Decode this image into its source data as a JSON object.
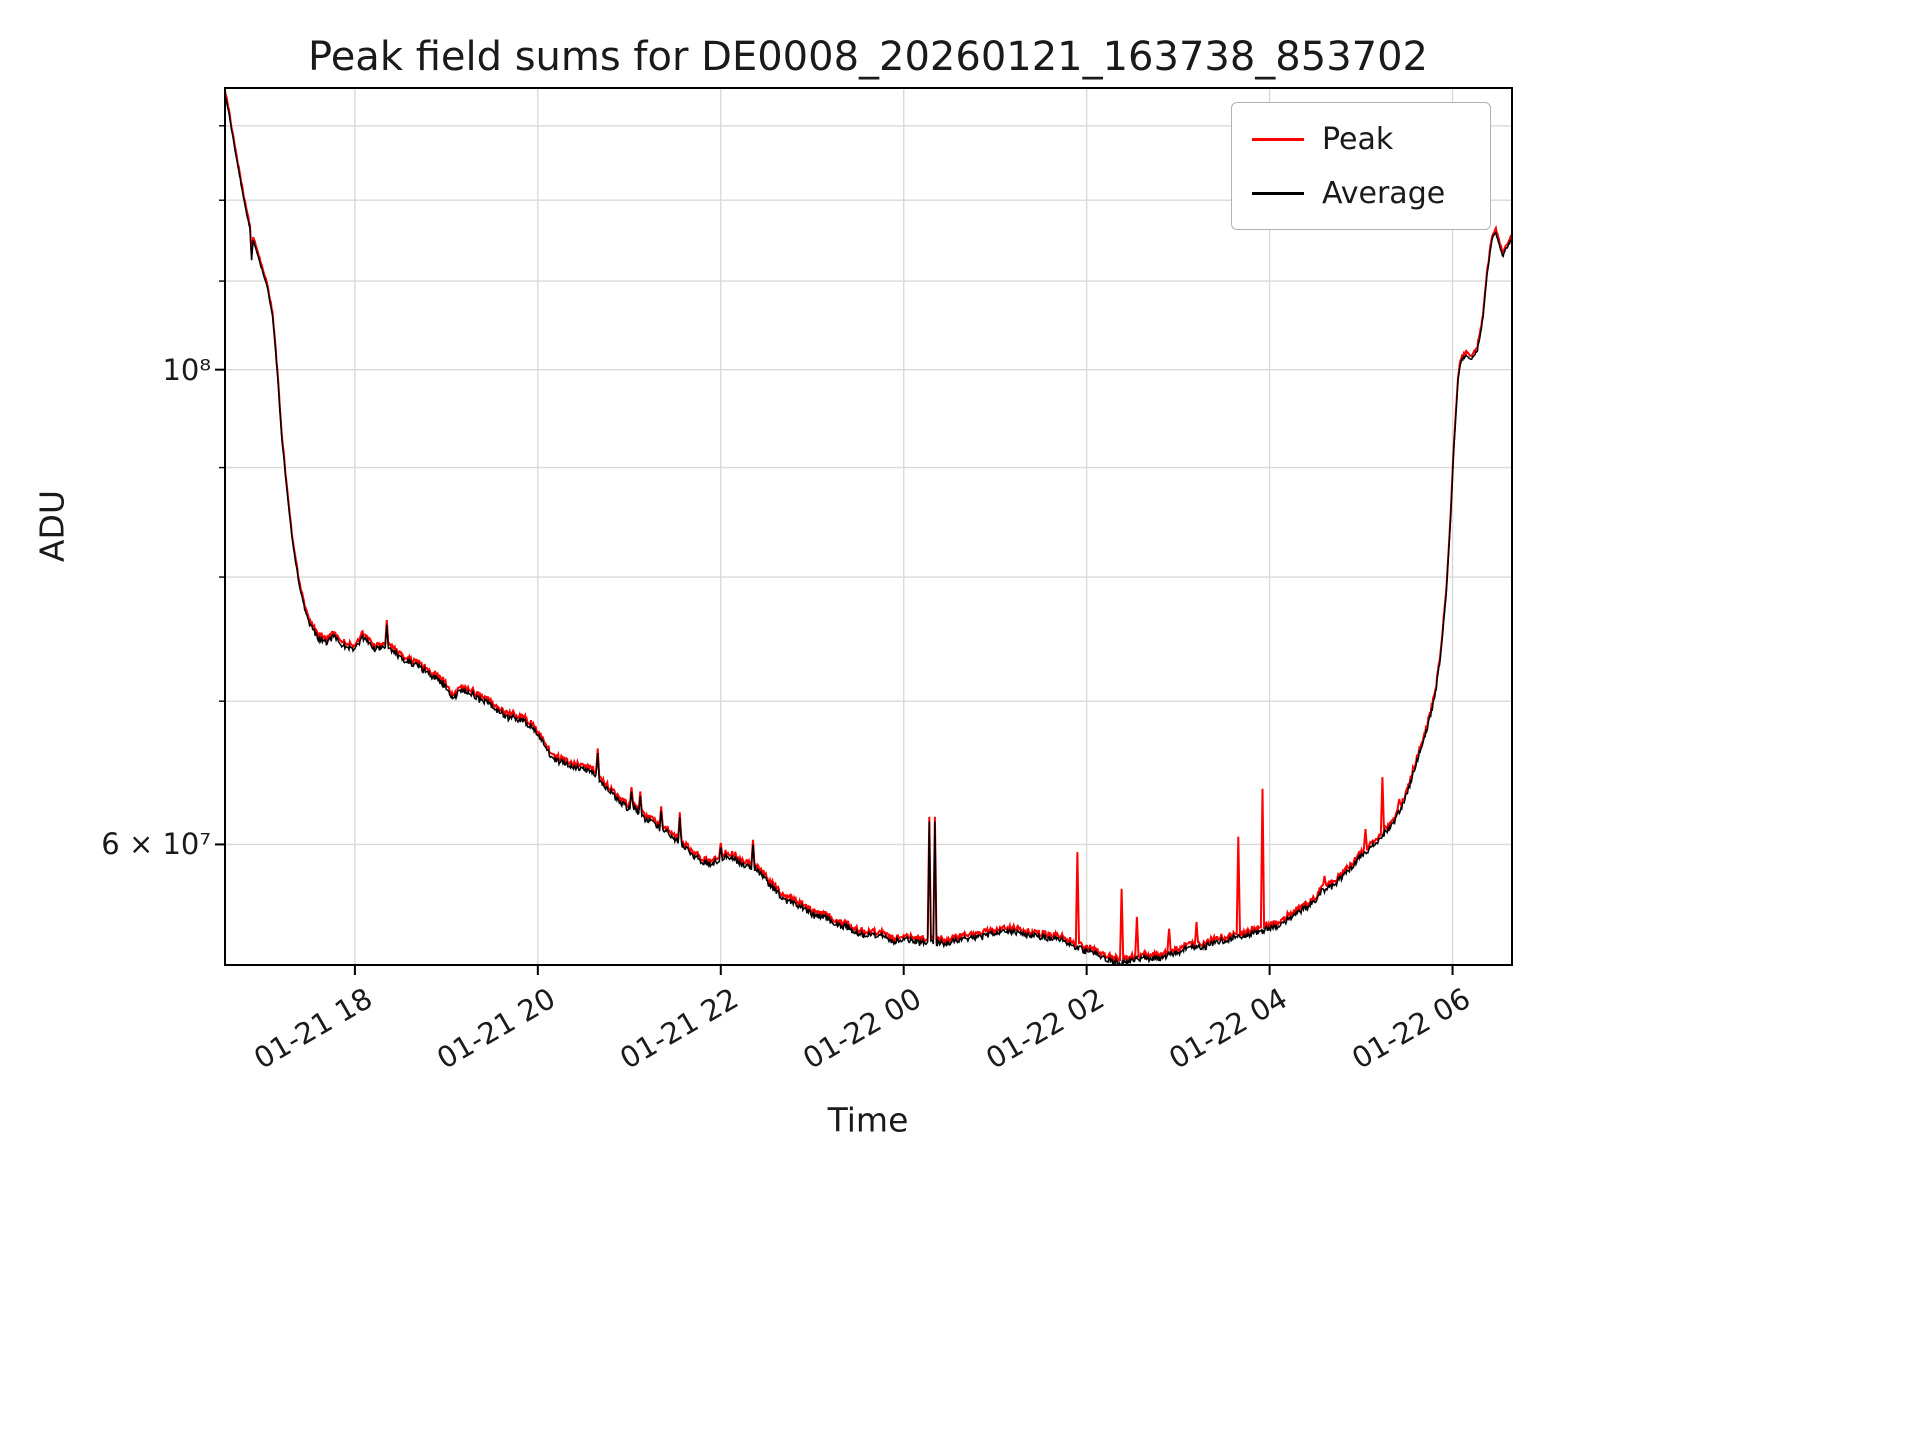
{
  "figure": {
    "title": "Peak field sums for DE0008_20260121_163738_853702",
    "xlabel": "Time",
    "ylabel": "ADU"
  },
  "legend": {
    "items": [
      {
        "label": "Peak",
        "color": "#ff0000"
      },
      {
        "label": "Average",
        "color": "#000000"
      }
    ]
  },
  "chart_data": {
    "type": "line",
    "title": "Peak field sums for DE0008_20260121_163738_853702",
    "xlabel": "Time",
    "ylabel": "ADU",
    "yscale": "log",
    "grid": true,
    "legend_position": "upper right",
    "x_unit": "hours since 2026-01-21 00:00",
    "xlim": [
      16.58,
      30.65
    ],
    "ylim": [
      52700000,
      135400000
    ],
    "x_ticks": [
      {
        "label": "01-21 18",
        "hour": 18
      },
      {
        "label": "01-21 20",
        "hour": 20
      },
      {
        "label": "01-21 22",
        "hour": 22
      },
      {
        "label": "01-22 00",
        "hour": 24
      },
      {
        "label": "01-22 02",
        "hour": 26
      },
      {
        "label": "01-22 04",
        "hour": 28
      },
      {
        "label": "01-22 06",
        "hour": 30
      }
    ],
    "y_ticks": [
      {
        "label": "10⁸",
        "value": 100000000
      },
      {
        "label": "6 × 10⁷",
        "value": 60000000
      }
    ],
    "y_gridlines": [
      60000000,
      70000000,
      80000000,
      90000000,
      100000000,
      110000000,
      120000000,
      130000000
    ],
    "series": [
      {
        "name": "Peak",
        "color": "#ff0000"
      },
      {
        "name": "Average",
        "color": "#000000"
      }
    ],
    "average_anchor_points": [
      [
        16.58,
        134500000
      ],
      [
        16.62,
        132000000
      ],
      [
        16.7,
        126000000
      ],
      [
        16.78,
        120500000
      ],
      [
        16.84,
        117000000
      ],
      [
        16.9,
        114500000
      ],
      [
        16.97,
        112000000
      ],
      [
        17.04,
        109500000
      ],
      [
        17.1,
        106000000
      ],
      [
        17.15,
        100000000
      ],
      [
        17.2,
        93000000
      ],
      [
        17.26,
        87500000
      ],
      [
        17.32,
        83000000
      ],
      [
        17.4,
        79000000
      ],
      [
        17.5,
        76000000
      ],
      [
        17.6,
        74800000
      ],
      [
        17.7,
        74600000
      ],
      [
        17.78,
        75200000
      ],
      [
        17.86,
        74500000
      ],
      [
        18.0,
        74200000
      ],
      [
        18.1,
        74800000
      ],
      [
        18.22,
        74000000
      ],
      [
        18.35,
        74200000
      ],
      [
        18.5,
        73300000
      ],
      [
        18.65,
        72800000
      ],
      [
        18.8,
        72200000
      ],
      [
        18.95,
        71400000
      ],
      [
        19.08,
        70200000
      ],
      [
        19.2,
        70800000
      ],
      [
        19.35,
        70200000
      ],
      [
        19.5,
        69700000
      ],
      [
        19.65,
        69000000
      ],
      [
        19.8,
        68600000
      ],
      [
        19.95,
        68000000
      ],
      [
        20.08,
        66800000
      ],
      [
        20.18,
        65800000
      ],
      [
        20.32,
        65500000
      ],
      [
        20.45,
        65200000
      ],
      [
        20.6,
        64800000
      ],
      [
        20.75,
        63600000
      ],
      [
        20.9,
        62800000
      ],
      [
        21.05,
        62200000
      ],
      [
        21.2,
        61600000
      ],
      [
        21.35,
        61000000
      ],
      [
        21.5,
        60300000
      ],
      [
        21.65,
        59300000
      ],
      [
        21.8,
        58800000
      ],
      [
        21.95,
        58900000
      ],
      [
        22.08,
        59300000
      ],
      [
        22.22,
        58800000
      ],
      [
        22.38,
        58600000
      ],
      [
        22.52,
        57800000
      ],
      [
        22.68,
        56900000
      ],
      [
        22.85,
        56200000
      ],
      [
        23.05,
        55600000
      ],
      [
        23.25,
        55100000
      ],
      [
        23.45,
        54700000
      ],
      [
        23.65,
        54500000
      ],
      [
        23.85,
        54300000
      ],
      [
        24.05,
        54200000
      ],
      [
        24.25,
        54100000
      ],
      [
        24.45,
        54000000
      ],
      [
        24.65,
        54200000
      ],
      [
        24.85,
        54400000
      ],
      [
        25.05,
        54600000
      ],
      [
        25.25,
        54600000
      ],
      [
        25.45,
        54400000
      ],
      [
        25.65,
        54100000
      ],
      [
        25.85,
        53700000
      ],
      [
        26.05,
        53300000
      ],
      [
        26.2,
        52900000
      ],
      [
        26.35,
        52800000
      ],
      [
        26.5,
        53000000
      ],
      [
        26.7,
        53100000
      ],
      [
        26.9,
        53300000
      ],
      [
        27.1,
        53600000
      ],
      [
        27.3,
        53800000
      ],
      [
        27.5,
        54100000
      ],
      [
        27.7,
        54400000
      ],
      [
        27.9,
        54700000
      ],
      [
        28.1,
        55200000
      ],
      [
        28.3,
        55800000
      ],
      [
        28.5,
        56500000
      ],
      [
        28.7,
        57400000
      ],
      [
        28.9,
        58500000
      ],
      [
        29.05,
        59400000
      ],
      [
        29.2,
        60400000
      ],
      [
        29.35,
        61500000
      ],
      [
        29.5,
        63200000
      ],
      [
        29.62,
        65500000
      ],
      [
        29.72,
        67800000
      ],
      [
        29.8,
        70000000
      ],
      [
        29.87,
        73500000
      ],
      [
        29.93,
        78500000
      ],
      [
        29.98,
        85500000
      ],
      [
        30.02,
        93000000
      ],
      [
        30.06,
        99000000
      ],
      [
        30.09,
        101000000
      ],
      [
        30.14,
        101500000
      ],
      [
        30.2,
        101200000
      ],
      [
        30.27,
        102000000
      ],
      [
        30.33,
        105500000
      ],
      [
        30.38,
        111000000
      ],
      [
        30.43,
        115000000
      ],
      [
        30.47,
        116000000
      ],
      [
        30.51,
        114500000
      ],
      [
        30.55,
        113000000
      ],
      [
        30.59,
        114000000
      ],
      [
        30.65,
        115000000
      ]
    ],
    "shared_spike_events": [
      [
        16.87,
        112500000
      ],
      [
        18.35,
        76000000
      ],
      [
        20.65,
        66200000
      ],
      [
        21.02,
        63500000
      ],
      [
        21.12,
        63200000
      ],
      [
        21.35,
        62200000
      ],
      [
        21.55,
        61800000
      ],
      [
        22.0,
        59800000
      ],
      [
        22.35,
        60000000
      ],
      [
        24.28,
        61500000
      ],
      [
        24.34,
        61500000
      ]
    ],
    "peak_spike_events": [
      [
        25.9,
        59500000
      ],
      [
        26.38,
        57200000
      ],
      [
        26.55,
        55500000
      ],
      [
        26.9,
        54800000
      ],
      [
        27.2,
        55200000
      ],
      [
        27.66,
        60500000
      ],
      [
        27.92,
        63700000
      ],
      [
        28.6,
        58000000
      ],
      [
        29.05,
        61000000
      ],
      [
        29.23,
        64500000
      ],
      [
        29.42,
        63000000
      ]
    ],
    "noise": {
      "seed": 42,
      "fast_rel_amp": 0.0032,
      "slow_rel_amp": 0.003,
      "peak_over_average_rel": 0.0025
    }
  }
}
